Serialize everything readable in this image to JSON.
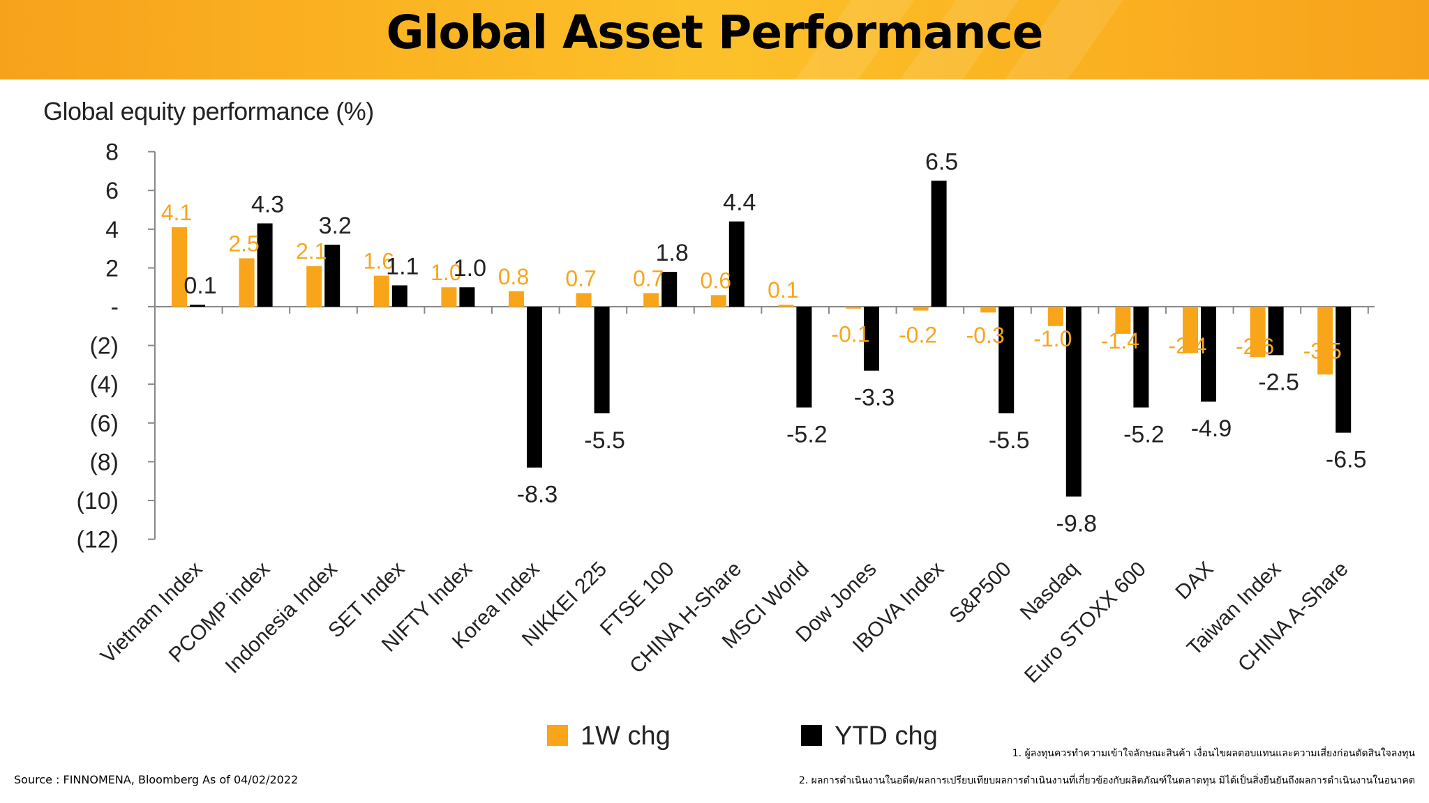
{
  "header": {
    "title": "Global Asset Performance"
  },
  "chart_data": {
    "type": "bar",
    "title": "Global equity performance (%)",
    "categories": [
      "Vietnam Index",
      "PCOMP index",
      "Indonesia Index",
      "SET Index",
      "NIFTY Index",
      "Korea Index",
      "NIKKEI 225",
      "FTSE 100",
      "CHINA H-Share",
      "MSCI World",
      "Dow Jones",
      "IBOVA Index",
      "S&P500",
      "Nasdaq",
      "Euro STOXX 600",
      "DAX",
      "Taiwan Index",
      "CHINA A-Share"
    ],
    "series": [
      {
        "name": "1W chg",
        "color": "#f9a51a",
        "values": [
          4.1,
          2.5,
          2.1,
          1.6,
          1.0,
          0.8,
          0.7,
          0.7,
          0.6,
          0.1,
          -0.1,
          -0.2,
          -0.3,
          -1.0,
          -1.4,
          -2.4,
          -2.6,
          -3.5
        ],
        "labels": [
          "4.1",
          "2.5",
          "2.1",
          "1.6",
          "1.0",
          "0.8",
          "0.7",
          "0.7",
          "0.6",
          "0.1",
          "-0.1",
          "-0.2",
          "-0.3",
          "-1.0",
          "-1.4",
          "-2.4",
          "-2.6",
          "-3.5"
        ]
      },
      {
        "name": "YTD chg",
        "color": "#000000",
        "values": [
          0.1,
          4.3,
          3.2,
          1.1,
          1.0,
          -8.3,
          -5.5,
          1.8,
          4.4,
          -5.2,
          -3.3,
          6.5,
          -5.5,
          -9.8,
          -5.2,
          -4.9,
          -2.5,
          -6.5
        ],
        "labels": [
          "0.1",
          "4.3",
          "3.2",
          "1.1",
          "1.0",
          "-8.3",
          "-5.5",
          "1.8",
          "4.4",
          "-5.2",
          "-3.3",
          "6.5",
          "-5.5",
          "-9.8",
          "-5.2",
          "-4.9",
          "-2.5",
          "-6.5"
        ]
      }
    ],
    "yticks": [
      8,
      6,
      4,
      2,
      0,
      -2,
      -4,
      -6,
      -8,
      -10,
      -12
    ],
    "ytick_labels": [
      "8",
      "6",
      "4",
      "2",
      "-",
      "(2)",
      "(4)",
      "(6)",
      "(8)",
      "(10)",
      "(12)"
    ],
    "ylim": [
      -12,
      8
    ],
    "xlabel": "",
    "ylabel": "",
    "legend_position": "bottom"
  },
  "footer": {
    "source": "Source : FINNOMENA, Bloomberg As of 04/02/2022",
    "note1": "1. ผู้ลงทุนควรทำความเข้าใจลักษณะสินค้า เงื่อนไขผลตอบแทนและความเสี่ยงก่อนตัดสินใจลงทุน",
    "note2": "2. ผลการดำเนินงานในอดีต/ผลการเปรียบเทียบผลการดำเนินงานที่เกี่ยวข้องกับผลิตภัณฑ์ในตลาดทุน มิได้เป็นสิ่งยืนยันถึงผลการดำเนินงานในอนาคต"
  }
}
